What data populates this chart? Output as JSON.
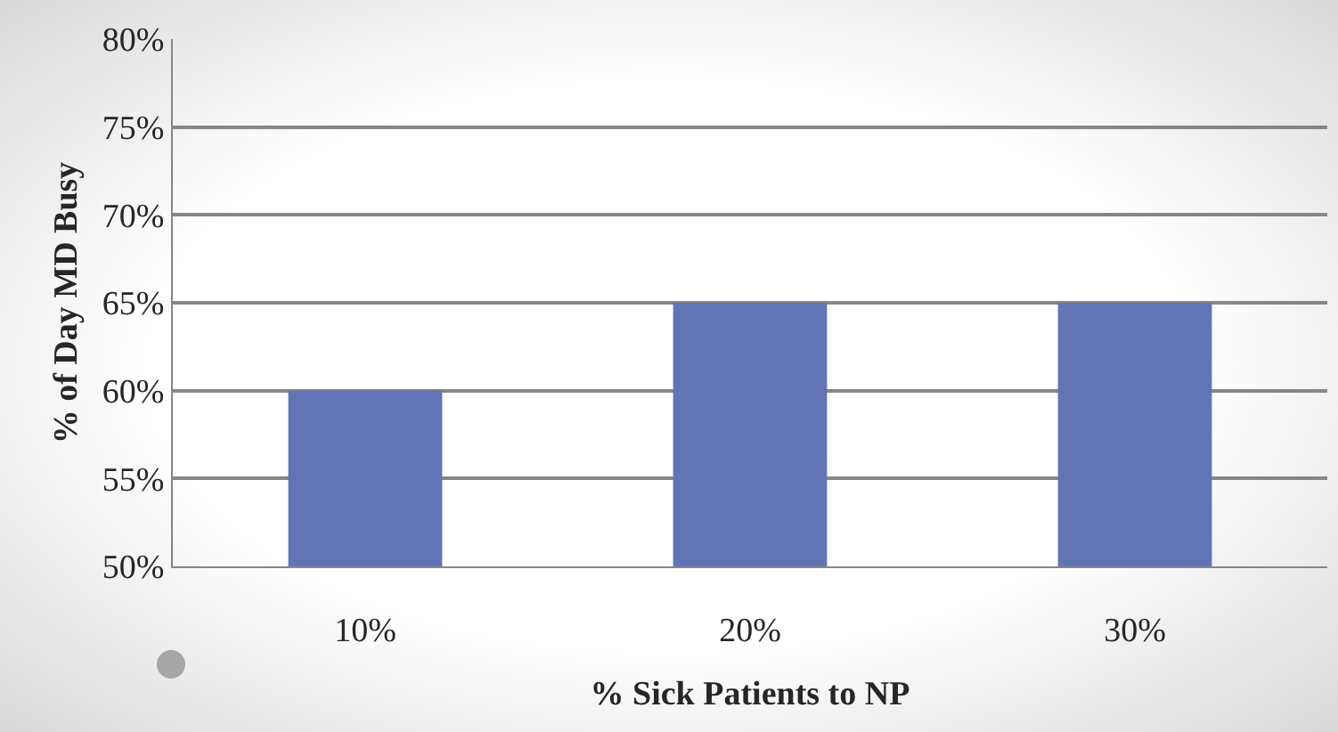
{
  "chart_data": {
    "type": "bar",
    "xlabel": "% Sick Patients to NP",
    "ylabel": "% of Day MD Busy",
    "categories": [
      "10%",
      "20%",
      "30%"
    ],
    "values": [
      60,
      65,
      65
    ],
    "color": "#6175b6",
    "ylim": [
      50,
      80
    ],
    "yticks": [
      {
        "value": 50,
        "label": "50%"
      },
      {
        "value": 55,
        "label": "55%"
      },
      {
        "value": 60,
        "label": "60%"
      },
      {
        "value": 65,
        "label": "65%"
      },
      {
        "value": 70,
        "label": "70%"
      },
      {
        "value": 75,
        "label": "75%"
      },
      {
        "value": 80,
        "label": "80%"
      }
    ],
    "grid": "y",
    "legend": false
  }
}
